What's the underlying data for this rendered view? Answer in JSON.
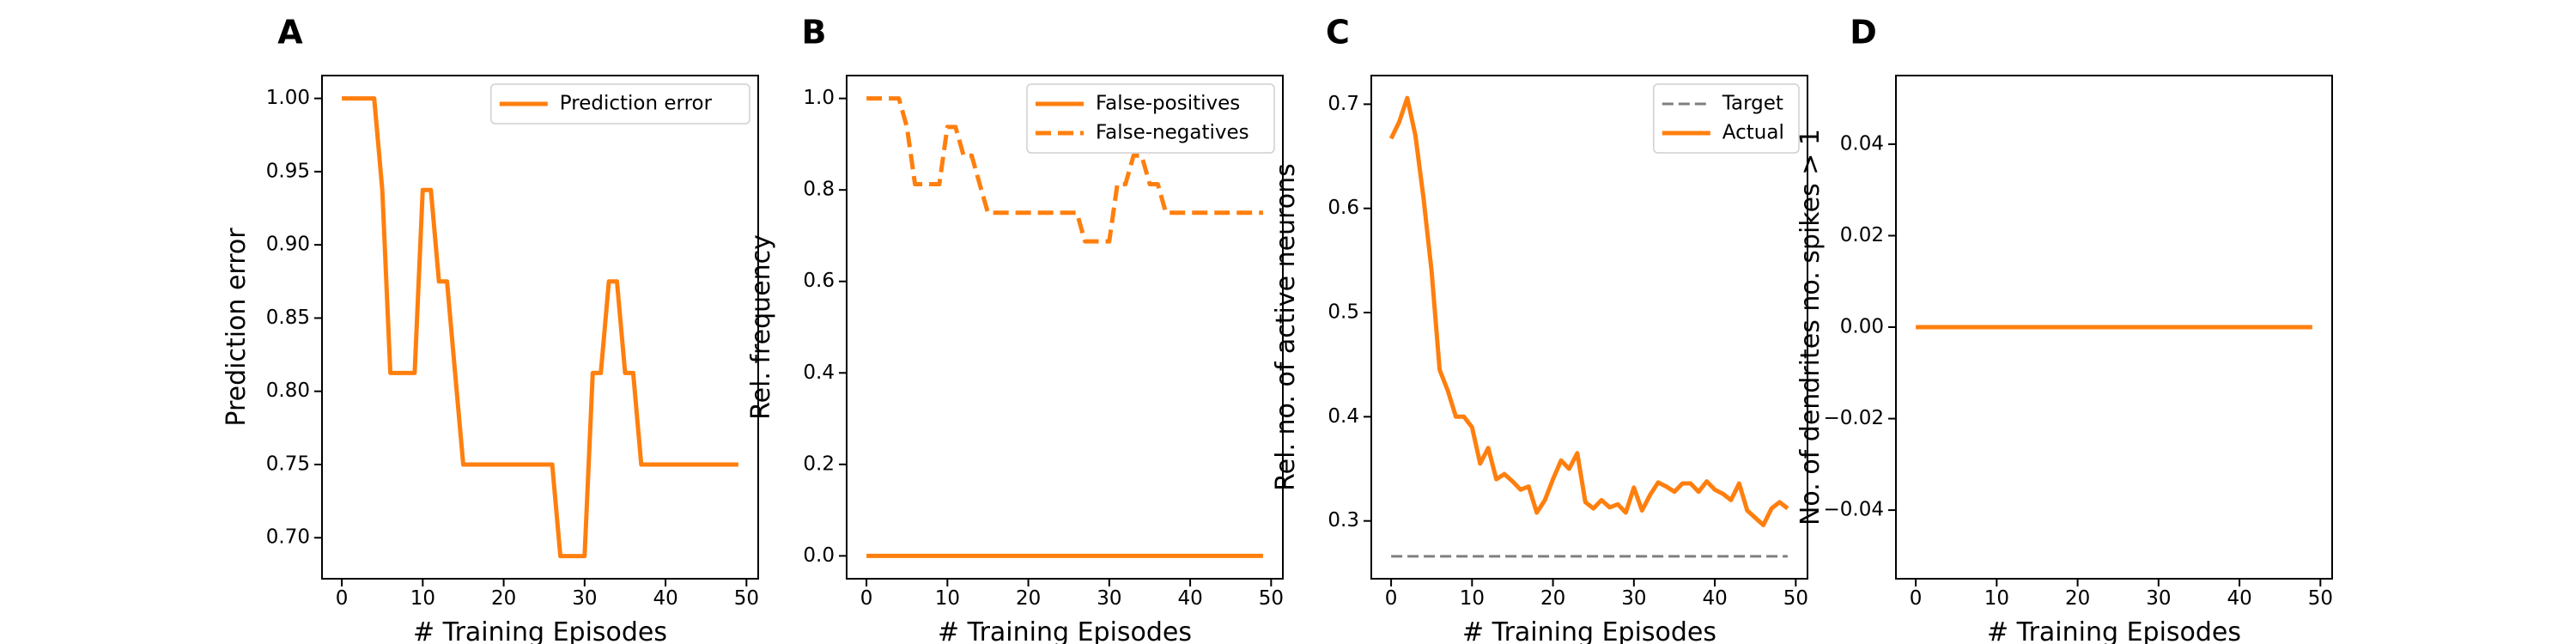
{
  "colors": {
    "actual": "#ff7f0e",
    "target": "#7f7f7f",
    "axis": "#000000"
  },
  "chart_data": [
    {
      "panel": "A",
      "type": "line",
      "xlabel": "# Training Episodes",
      "ylabel": "Prediction error",
      "xlim": [
        -2.45,
        51.45
      ],
      "ylim": [
        0.672,
        1.0156
      ],
      "xticks": [
        0,
        10,
        20,
        30,
        40,
        50
      ],
      "yticks": [
        0.7,
        0.75,
        0.8,
        0.85,
        0.9,
        0.95,
        1.0
      ],
      "ytick_labels": [
        "0.70",
        "0.75",
        "0.80",
        "0.85",
        "0.90",
        "0.95",
        "1.00"
      ],
      "legend_position": "upper right",
      "series": [
        {
          "name": "Prediction error",
          "style": "solid",
          "x": [
            0,
            1,
            2,
            3,
            4,
            5,
            6,
            7,
            8,
            9,
            10,
            11,
            12,
            13,
            14,
            15,
            16,
            17,
            18,
            19,
            20,
            21,
            22,
            23,
            24,
            25,
            26,
            27,
            28,
            29,
            30,
            31,
            32,
            33,
            34,
            35,
            36,
            37,
            38,
            39,
            40,
            41,
            42,
            43,
            44,
            45,
            46,
            47,
            48,
            49
          ],
          "values": [
            1.0,
            1.0,
            1.0,
            1.0,
            1.0,
            0.9375,
            0.8125,
            0.8125,
            0.8125,
            0.8125,
            0.9375,
            0.9375,
            0.875,
            0.875,
            0.8125,
            0.75,
            0.75,
            0.75,
            0.75,
            0.75,
            0.75,
            0.75,
            0.75,
            0.75,
            0.75,
            0.75,
            0.75,
            0.6875,
            0.6875,
            0.6875,
            0.6875,
            0.8125,
            0.8125,
            0.875,
            0.875,
            0.8125,
            0.8125,
            0.75,
            0.75,
            0.75,
            0.75,
            0.75,
            0.75,
            0.75,
            0.75,
            0.75,
            0.75,
            0.75,
            0.75,
            0.75
          ]
        }
      ]
    },
    {
      "panel": "B",
      "type": "line",
      "xlabel": "# Training Episodes",
      "ylabel": "Rel. frequency",
      "xlim": [
        -2.45,
        51.45
      ],
      "ylim": [
        -0.05,
        1.05
      ],
      "xticks": [
        0,
        10,
        20,
        30,
        40,
        50
      ],
      "yticks": [
        0.0,
        0.2,
        0.4,
        0.6,
        0.8,
        1.0
      ],
      "ytick_labels": [
        "0.0",
        "0.2",
        "0.4",
        "0.6",
        "0.8",
        "1.0"
      ],
      "legend_position": "upper right",
      "series": [
        {
          "name": "False-positives",
          "style": "solid",
          "x": [
            0,
            1,
            2,
            3,
            4,
            5,
            6,
            7,
            8,
            9,
            10,
            11,
            12,
            13,
            14,
            15,
            16,
            17,
            18,
            19,
            20,
            21,
            22,
            23,
            24,
            25,
            26,
            27,
            28,
            29,
            30,
            31,
            32,
            33,
            34,
            35,
            36,
            37,
            38,
            39,
            40,
            41,
            42,
            43,
            44,
            45,
            46,
            47,
            48,
            49
          ],
          "values": [
            0,
            0,
            0,
            0,
            0,
            0,
            0,
            0,
            0,
            0,
            0,
            0,
            0,
            0,
            0,
            0,
            0,
            0,
            0,
            0,
            0,
            0,
            0,
            0,
            0,
            0,
            0,
            0,
            0,
            0,
            0,
            0,
            0,
            0,
            0,
            0,
            0,
            0,
            0,
            0,
            0,
            0,
            0,
            0,
            0,
            0,
            0,
            0,
            0,
            0
          ]
        },
        {
          "name": "False-negatives",
          "style": "dashed",
          "x": [
            0,
            1,
            2,
            3,
            4,
            5,
            6,
            7,
            8,
            9,
            10,
            11,
            12,
            13,
            14,
            15,
            16,
            17,
            18,
            19,
            20,
            21,
            22,
            23,
            24,
            25,
            26,
            27,
            28,
            29,
            30,
            31,
            32,
            33,
            34,
            35,
            36,
            37,
            38,
            39,
            40,
            41,
            42,
            43,
            44,
            45,
            46,
            47,
            48,
            49
          ],
          "values": [
            1.0,
            1.0,
            1.0,
            1.0,
            1.0,
            0.9375,
            0.8125,
            0.8125,
            0.8125,
            0.8125,
            0.9375,
            0.9375,
            0.875,
            0.875,
            0.8125,
            0.75,
            0.75,
            0.75,
            0.75,
            0.75,
            0.75,
            0.75,
            0.75,
            0.75,
            0.75,
            0.75,
            0.75,
            0.6875,
            0.6875,
            0.6875,
            0.6875,
            0.8125,
            0.8125,
            0.875,
            0.875,
            0.8125,
            0.8125,
            0.75,
            0.75,
            0.75,
            0.75,
            0.75,
            0.75,
            0.75,
            0.75,
            0.75,
            0.75,
            0.75,
            0.75,
            0.75
          ]
        }
      ]
    },
    {
      "panel": "C",
      "type": "line",
      "xlabel": "# Training Episodes",
      "ylabel": "Rel. no. of active neurons",
      "xlim": [
        -2.45,
        51.45
      ],
      "ylim": [
        0.2445,
        0.7275
      ],
      "xticks": [
        0,
        10,
        20,
        30,
        40,
        50
      ],
      "yticks": [
        0.3,
        0.4,
        0.5,
        0.6,
        0.7
      ],
      "ytick_labels": [
        "0.3",
        "0.4",
        "0.5",
        "0.6",
        "0.7"
      ],
      "legend_position": "upper right",
      "series": [
        {
          "name": "Target",
          "style": "dashed",
          "x": [
            0,
            49
          ],
          "values": [
            0.266,
            0.266
          ]
        },
        {
          "name": "Actual",
          "style": "solid",
          "x": [
            0,
            1,
            2,
            3,
            4,
            5,
            6,
            7,
            8,
            9,
            10,
            11,
            12,
            13,
            14,
            15,
            16,
            17,
            18,
            19,
            20,
            21,
            22,
            23,
            24,
            25,
            26,
            27,
            28,
            29,
            30,
            31,
            32,
            33,
            34,
            35,
            36,
            37,
            38,
            39,
            40,
            41,
            42,
            43,
            44,
            45,
            46,
            47,
            48,
            49
          ],
          "values": [
            0.667,
            0.683,
            0.706,
            0.67,
            0.61,
            0.54,
            0.445,
            0.425,
            0.4,
            0.4,
            0.39,
            0.355,
            0.37,
            0.34,
            0.345,
            0.338,
            0.33,
            0.333,
            0.308,
            0.32,
            0.34,
            0.358,
            0.35,
            0.365,
            0.318,
            0.312,
            0.32,
            0.313,
            0.316,
            0.308,
            0.332,
            0.31,
            0.325,
            0.337,
            0.333,
            0.328,
            0.336,
            0.336,
            0.328,
            0.338,
            0.33,
            0.326,
            0.32,
            0.336,
            0.31,
            0.303,
            0.296,
            0.312,
            0.318,
            0.312
          ]
        }
      ]
    },
    {
      "panel": "D",
      "type": "line",
      "xlabel": "# Training Episodes",
      "ylabel": "No. of dendrites no. spikes > 1",
      "xlim": [
        -2.45,
        51.45
      ],
      "ylim": [
        -0.055,
        0.055
      ],
      "xticks": [
        0,
        10,
        20,
        30,
        40,
        50
      ],
      "yticks": [
        -0.04,
        -0.02,
        0.0,
        0.02,
        0.04
      ],
      "ytick_labels": [
        "−0.04",
        "−0.02",
        "0.00",
        "0.02",
        "0.04"
      ],
      "series": [
        {
          "style": "solid",
          "x": [
            0,
            1,
            2,
            3,
            4,
            5,
            6,
            7,
            8,
            9,
            10,
            11,
            12,
            13,
            14,
            15,
            16,
            17,
            18,
            19,
            20,
            21,
            22,
            23,
            24,
            25,
            26,
            27,
            28,
            29,
            30,
            31,
            32,
            33,
            34,
            35,
            36,
            37,
            38,
            39,
            40,
            41,
            42,
            43,
            44,
            45,
            46,
            47,
            48,
            49
          ],
          "values": [
            0,
            0,
            0,
            0,
            0,
            0,
            0,
            0,
            0,
            0,
            0,
            0,
            0,
            0,
            0,
            0,
            0,
            0,
            0,
            0,
            0,
            0,
            0,
            0,
            0,
            0,
            0,
            0,
            0,
            0,
            0,
            0,
            0,
            0,
            0,
            0,
            0,
            0,
            0,
            0,
            0,
            0,
            0,
            0,
            0,
            0,
            0,
            0,
            0,
            0
          ]
        }
      ]
    }
  ]
}
